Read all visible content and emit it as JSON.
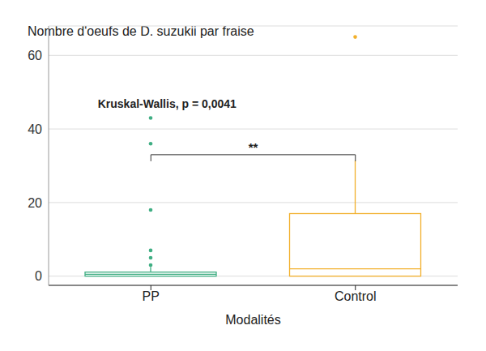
{
  "chart_data": {
    "type": "box",
    "title": "Nombre d'oeufs de D. suzukii par fraise",
    "x_label": "Modalités",
    "categories": [
      "PP",
      "Control"
    ],
    "colors": [
      "#3fae83",
      "#f2b02c"
    ],
    "boxes": [
      {
        "min": 0,
        "q1": 0,
        "median": 0.5,
        "q3": 1.1,
        "max": 2.5,
        "outliers": [
          3,
          5,
          7,
          18,
          36,
          43
        ]
      },
      {
        "min": 0,
        "q1": 0,
        "median": 2,
        "q3": 17,
        "max": 31.5,
        "outliers": [
          65
        ]
      }
    ],
    "ylim": [
      -2.5,
      68
    ],
    "yticks": [
      0,
      20,
      40,
      60
    ],
    "grid": true,
    "annotations": [
      {
        "text": "Kruskal-Wallis, p = 0,0041"
      },
      {
        "text": "**",
        "from": "PP",
        "to": "Control",
        "y": 33
      }
    ]
  }
}
